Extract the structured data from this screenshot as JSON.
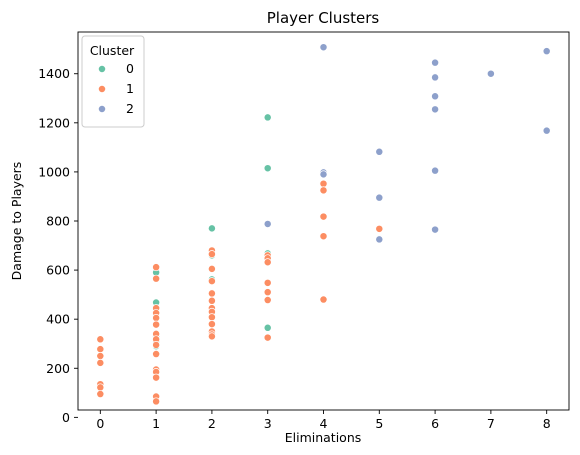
{
  "chart_data": {
    "type": "scatter",
    "title": "Player Clusters",
    "xlabel": "Eliminations",
    "ylabel": "Damage to Players",
    "xlim": [
      -0.4,
      8.4
    ],
    "ylim": [
      30,
      1570
    ],
    "xticks": [
      0,
      1,
      2,
      3,
      4,
      5,
      6,
      7,
      8
    ],
    "yticks": [
      0,
      200,
      400,
      600,
      800,
      1000,
      1200,
      1400
    ],
    "grid": false,
    "legend": {
      "title": "Cluster",
      "placement": "top-left"
    },
    "series": [
      {
        "name": "0",
        "color": "#66c2a5",
        "points": [
          [
            1,
            590
          ],
          [
            1,
            468
          ],
          [
            1,
            330
          ],
          [
            1,
            310
          ],
          [
            1,
            290
          ],
          [
            2,
            770
          ],
          [
            2,
            660
          ],
          [
            2,
            562
          ],
          [
            3,
            1222
          ],
          [
            3,
            1015
          ],
          [
            3,
            668
          ],
          [
            3,
            550
          ],
          [
            3,
            365
          ]
        ]
      },
      {
        "name": "1",
        "color": "#fc8d62",
        "points": [
          [
            0,
            318
          ],
          [
            0,
            278
          ],
          [
            0,
            250
          ],
          [
            0,
            222
          ],
          [
            0,
            135
          ],
          [
            0,
            122
          ],
          [
            0,
            95
          ],
          [
            1,
            612
          ],
          [
            1,
            565
          ],
          [
            1,
            445
          ],
          [
            1,
            425
          ],
          [
            1,
            405
          ],
          [
            1,
            378
          ],
          [
            1,
            340
          ],
          [
            1,
            318
          ],
          [
            1,
            295
          ],
          [
            1,
            258
          ],
          [
            1,
            195
          ],
          [
            1,
            185
          ],
          [
            1,
            162
          ],
          [
            1,
            85
          ],
          [
            1,
            65
          ],
          [
            2,
            680
          ],
          [
            2,
            665
          ],
          [
            2,
            605
          ],
          [
            2,
            555
          ],
          [
            2,
            505
          ],
          [
            2,
            475
          ],
          [
            2,
            445
          ],
          [
            2,
            430
          ],
          [
            2,
            408
          ],
          [
            2,
            380
          ],
          [
            2,
            350
          ],
          [
            2,
            338
          ],
          [
            2,
            330
          ],
          [
            3,
            660
          ],
          [
            3,
            648
          ],
          [
            3,
            632
          ],
          [
            3,
            548
          ],
          [
            3,
            510
          ],
          [
            3,
            478
          ],
          [
            3,
            325
          ],
          [
            4,
            952
          ],
          [
            4,
            925
          ],
          [
            4,
            818
          ],
          [
            4,
            738
          ],
          [
            4,
            480
          ],
          [
            5,
            768
          ]
        ]
      },
      {
        "name": "2",
        "color": "#8da0cb",
        "points": [
          [
            3,
            788
          ],
          [
            4,
            1508
          ],
          [
            4,
            998
          ],
          [
            4,
            990
          ],
          [
            5,
            1082
          ],
          [
            5,
            895
          ],
          [
            5,
            725
          ],
          [
            6,
            1445
          ],
          [
            6,
            1385
          ],
          [
            6,
            1308
          ],
          [
            6,
            1255
          ],
          [
            6,
            1005
          ],
          [
            6,
            765
          ],
          [
            7,
            1400
          ],
          [
            8,
            1492
          ],
          [
            8,
            1168
          ]
        ]
      }
    ]
  }
}
